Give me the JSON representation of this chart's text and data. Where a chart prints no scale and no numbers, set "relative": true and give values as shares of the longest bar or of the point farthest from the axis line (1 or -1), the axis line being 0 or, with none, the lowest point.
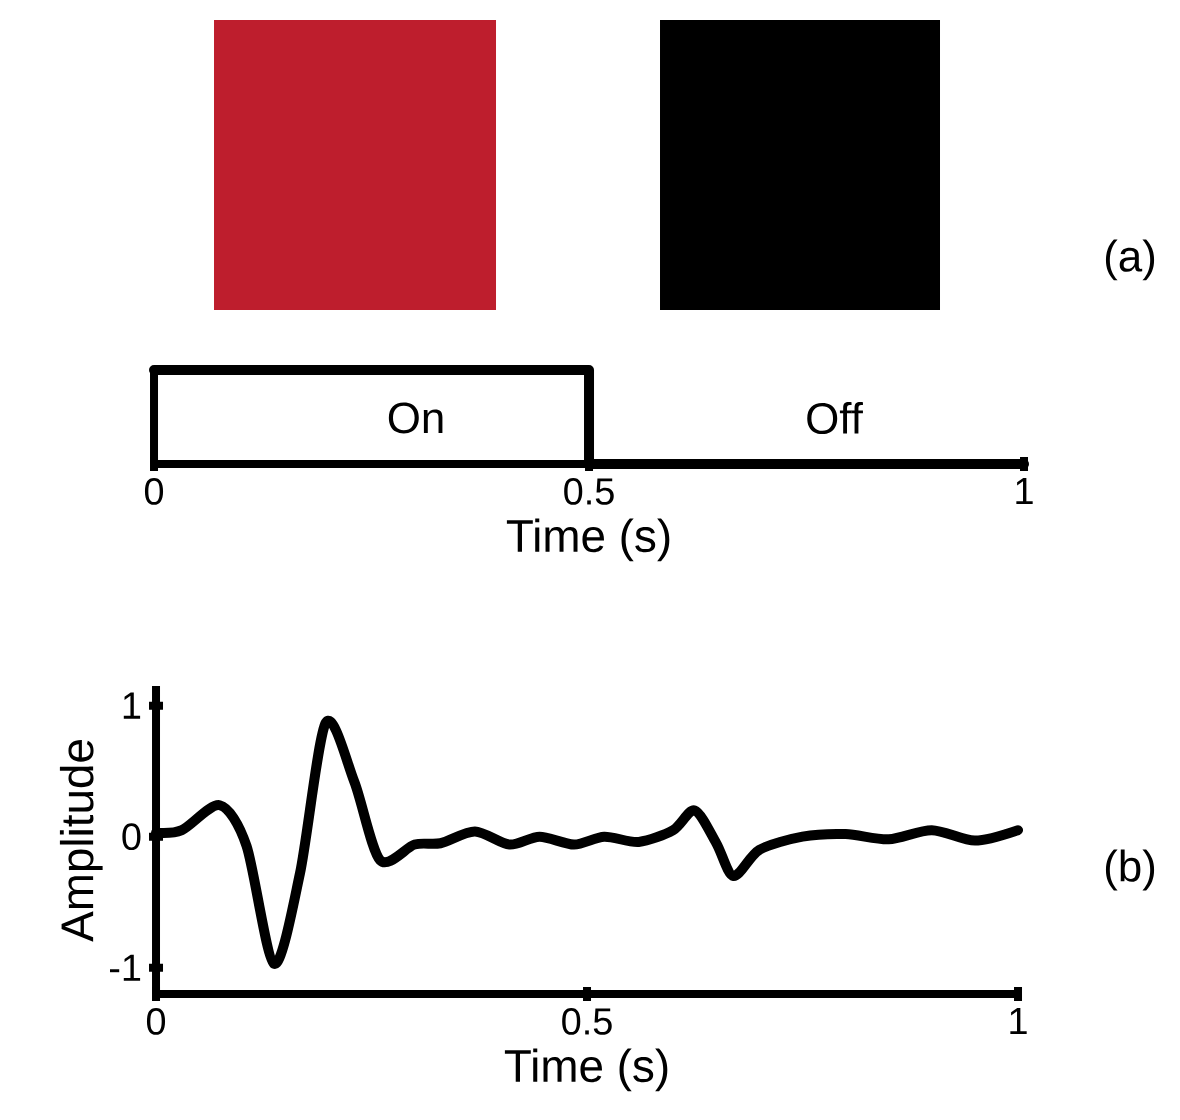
{
  "chart_data": [
    {
      "type": "step",
      "x": [
        0,
        0.5,
        1
      ],
      "values": [
        1,
        0,
        0
      ],
      "relative": true,
      "color": "#000000",
      "xlim": [
        0,
        1
      ],
      "xticks": [
        0,
        0.5,
        1
      ],
      "xlabel": "Time (s)",
      "annotations": [
        "On",
        "Off",
        "(a)"
      ]
    },
    {
      "type": "line",
      "color": "#000000",
      "xlim": [
        0,
        1
      ],
      "xticks": [
        0,
        0.5,
        1
      ],
      "ylim": [
        -1.2,
        1.15
      ],
      "yticks": [
        -1,
        0,
        1
      ],
      "xlabel": "Time (s)",
      "ylabel": "Amplitude",
      "x": [
        0,
        0.03,
        0.074,
        0.105,
        0.137,
        0.167,
        0.197,
        0.23,
        0.26,
        0.3,
        0.33,
        0.37,
        0.41,
        0.445,
        0.485,
        0.52,
        0.56,
        0.6,
        0.625,
        0.65,
        0.67,
        0.7,
        0.75,
        0.8,
        0.85,
        0.9,
        0.95,
        1
      ],
      "values": [
        0.03,
        0.05,
        0.24,
        -0.07,
        -0.97,
        -0.28,
        0.87,
        0.42,
        -0.18,
        -0.06,
        -0.05,
        0.04,
        -0.06,
        0,
        -0.06,
        0,
        -0.04,
        0.05,
        0.2,
        -0.05,
        -0.3,
        -0.1,
        0,
        0.02,
        -0.02,
        0.05,
        -0.03,
        0.05
      ],
      "annotations": [
        "(b)"
      ]
    }
  ]
}
